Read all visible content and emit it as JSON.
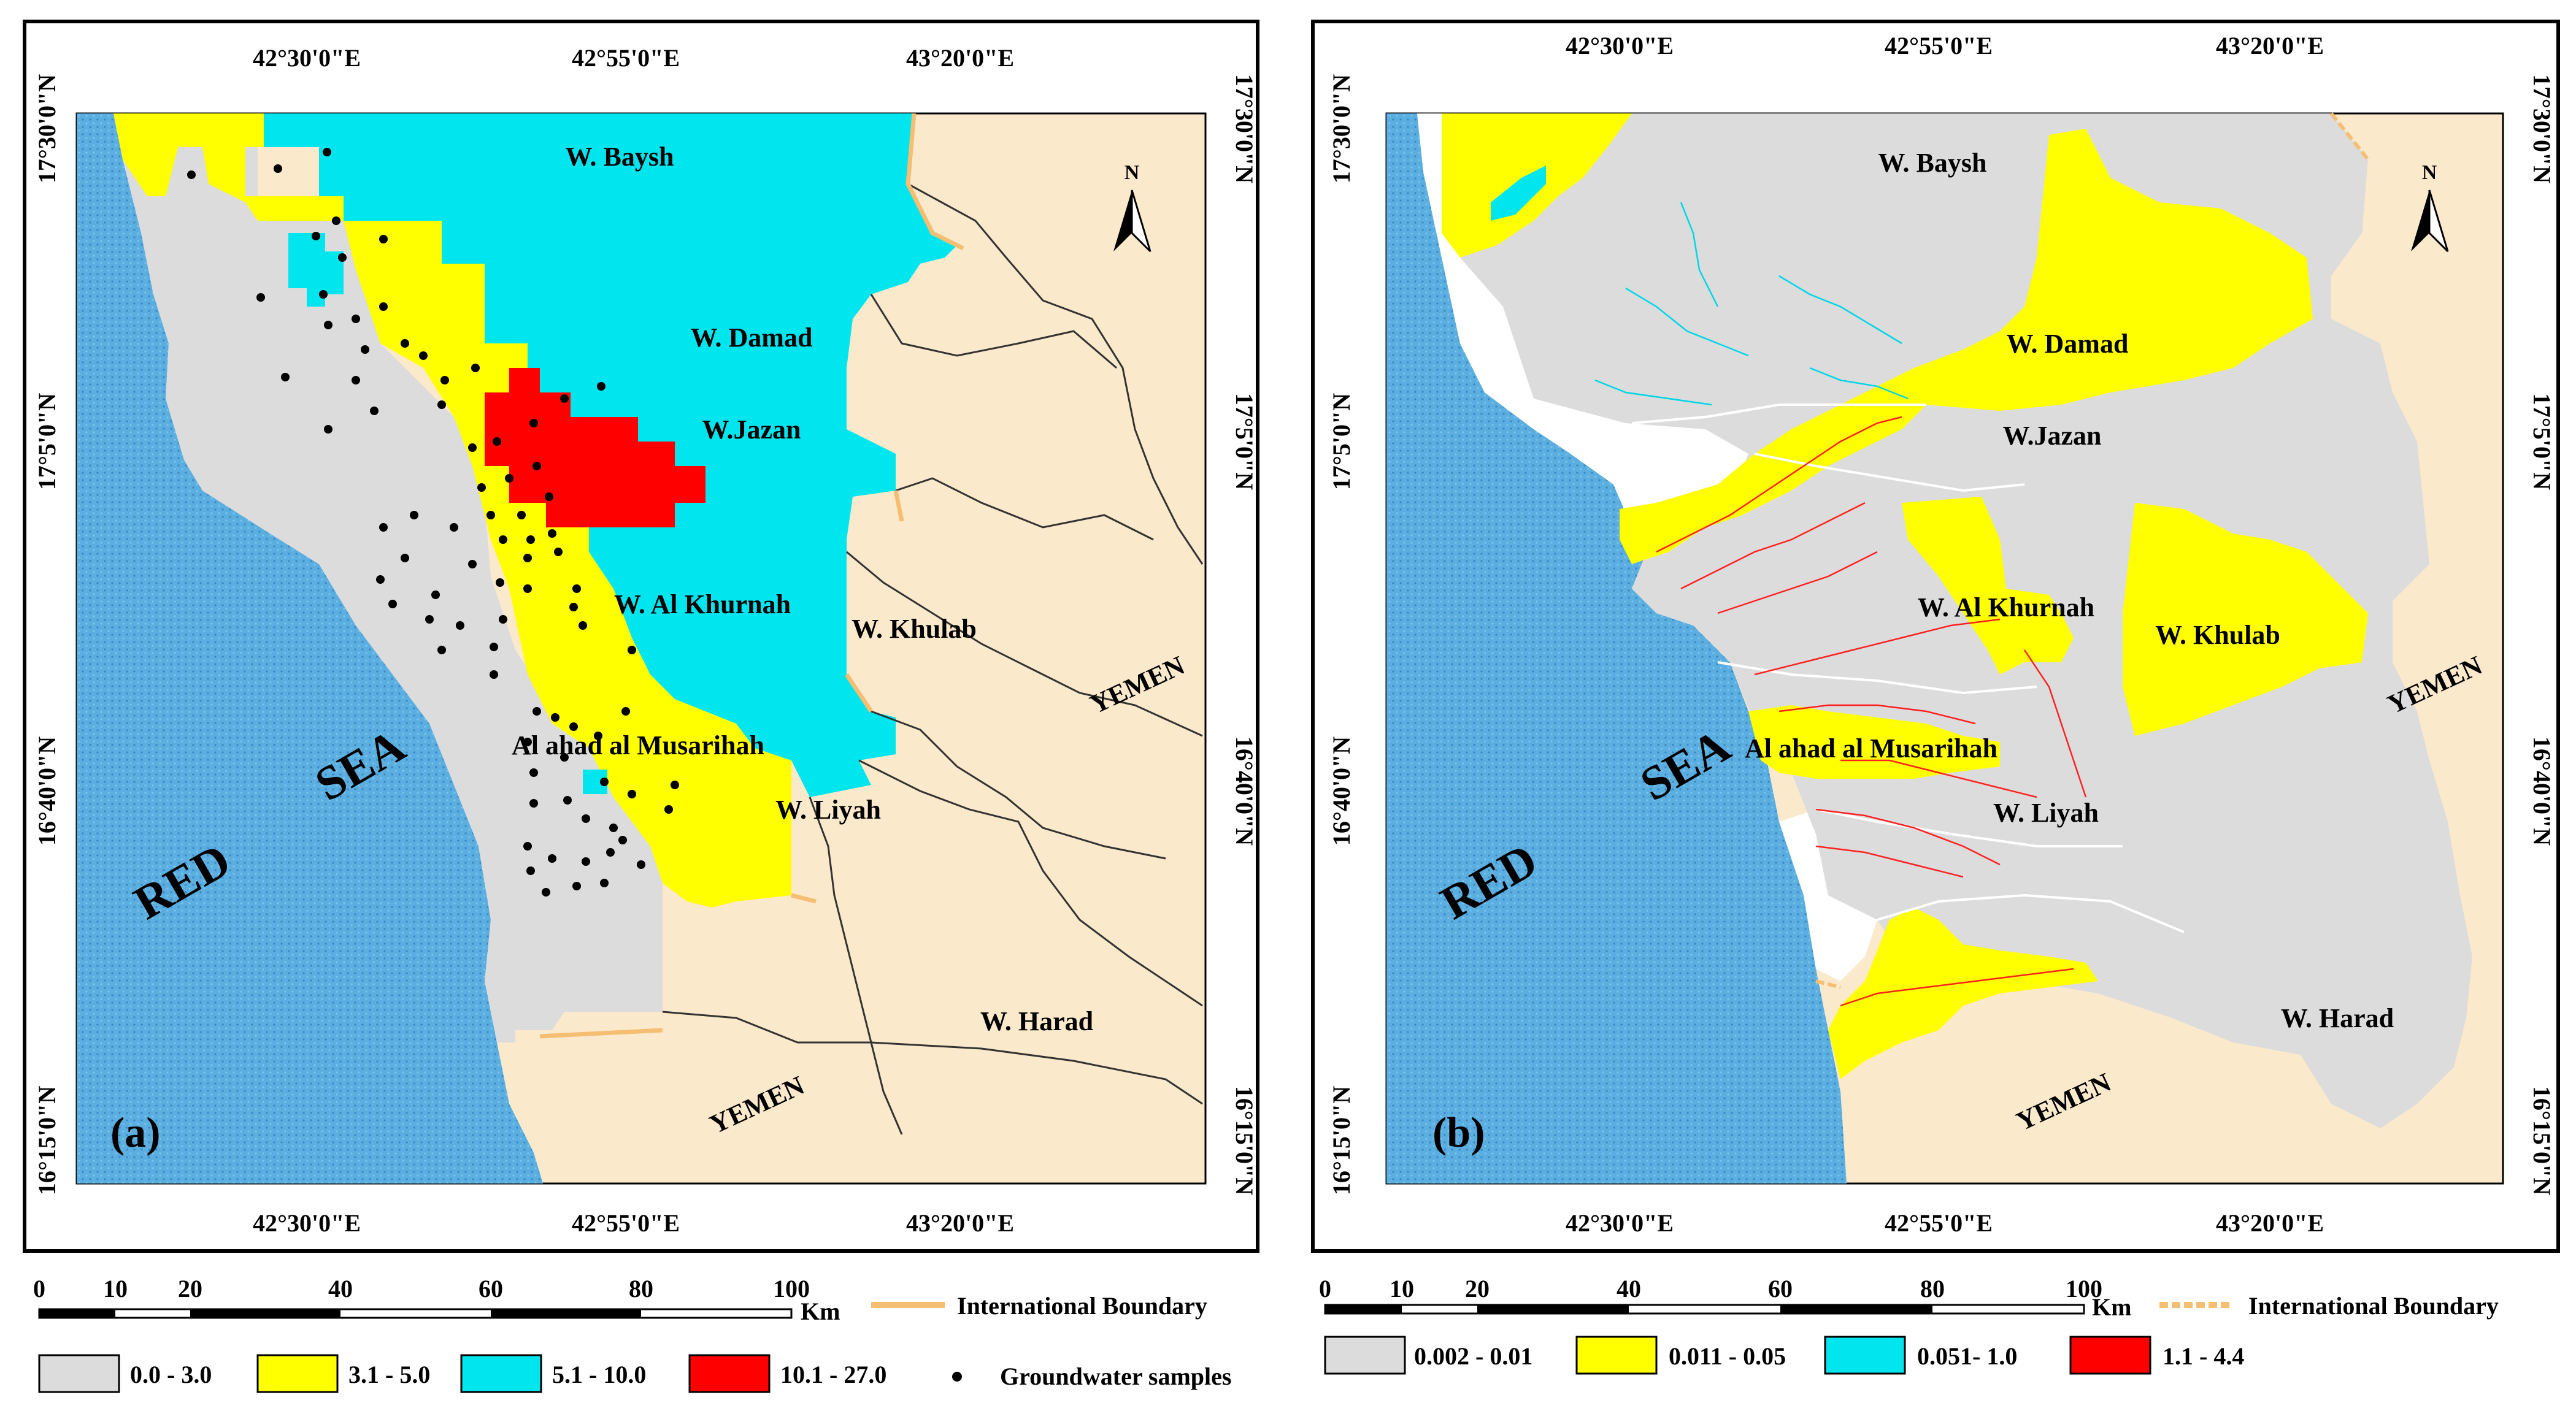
{
  "panels": [
    {
      "letter": "(a)",
      "coords_top": [
        "42°30'0\"E",
        "42°55'0\"E",
        "43°20'0\"E"
      ],
      "coords_bottom": [
        "42°30'0\"E",
        "42°55'0\"E",
        "43°20'0\"E"
      ],
      "coords_left": [
        "17°30'0\"N",
        "17°5'0\"N",
        "16°40'0\"N",
        "16°15'0\"N"
      ],
      "coords_right": [
        "17°30'0\"N",
        "17°5'0\"N",
        "16°40'0\"N",
        "16°15'0\"N"
      ],
      "places": {
        "baysh": "W. Baysh",
        "damad": "W. Damad",
        "jazan": "W.Jazan",
        "khurnah": "W. Al Khurnah",
        "khulab": "W. Khulab",
        "musarihah": "Al ahad al Musarihah",
        "liyah": "W. Liyah",
        "harad": "W. Harad",
        "yemen_east": "YEMEN",
        "yemen_south": "YEMEN",
        "red": "RED",
        "sea": "SEA"
      },
      "north": "N",
      "scale": {
        "ticks": [
          "0",
          "10",
          "20",
          "40",
          "60",
          "80",
          "100"
        ],
        "unit": "Km"
      },
      "boundary_label": "International Boundary",
      "legend": [
        {
          "label": "0.0 - 3.0",
          "color": "#dcdcdc"
        },
        {
          "label": "3.1 - 5.0",
          "color": "#ffff00"
        },
        {
          "label": "5.1 - 10.0",
          "color": "#00e5ee"
        },
        {
          "label": "10.1 - 27.0",
          "color": "#ff0000"
        }
      ],
      "samples_label": "Groundwater samples"
    },
    {
      "letter": "(b)",
      "coords_top": [
        "42°30'0\"E",
        "42°55'0\"E",
        "43°20'0\"E"
      ],
      "coords_bottom": [
        "42°30'0\"E",
        "42°55'0\"E",
        "43°20'0\"E"
      ],
      "coords_left": [
        "17°30'0\"N",
        "17°5'0\"N",
        "16°40'0\"N",
        "16°15'0\"N"
      ],
      "coords_right": [
        "17°30'0\"N",
        "17°5'0\"N",
        "16°40'0\"N",
        "16°15'0\"N"
      ],
      "places": {
        "baysh": "W. Baysh",
        "damad": "W. Damad",
        "jazan": "W.Jazan",
        "khurnah": "W. Al Khurnah",
        "khulab": "W. Khulab",
        "musarihah": "Al ahad al Musarihah",
        "liyah": "W. Liyah",
        "harad": "W. Harad",
        "yemen_east": "YEMEN",
        "yemen_south": "YEMEN",
        "red": "RED",
        "sea": "SEA"
      },
      "north": "N",
      "scale": {
        "ticks": [
          "0",
          "10",
          "20",
          "40",
          "60",
          "80",
          "100"
        ],
        "unit": "Km"
      },
      "boundary_label": "International Boundary",
      "legend": [
        {
          "label": "0.002 - 0.01",
          "color": "#dcdcdc"
        },
        {
          "label": "0.011 - 0.05",
          "color": "#ffff00"
        },
        {
          "label": "0.051- 1.0",
          "color": "#00e5ee"
        },
        {
          "label": "1.1 - 4.4",
          "color": "#ff0000"
        }
      ]
    }
  ],
  "colors": {
    "sea": "#5aaee0",
    "land": "#fbe9cc",
    "boundary": "#f5be72",
    "streams_a": "#00d6e6",
    "streams_b": "#ff2020"
  }
}
